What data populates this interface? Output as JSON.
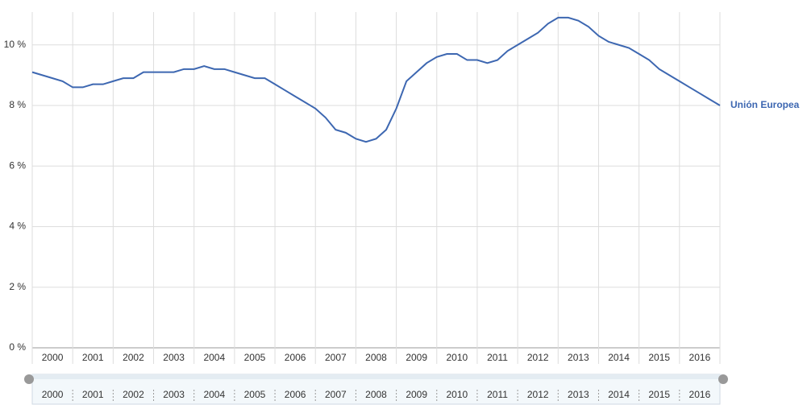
{
  "chart_data": {
    "type": "line",
    "x": [
      2000,
      2000.25,
      2000.5,
      2000.75,
      2001,
      2001.25,
      2001.5,
      2001.75,
      2002,
      2002.25,
      2002.5,
      2002.75,
      2003,
      2003.25,
      2003.5,
      2003.75,
      2004,
      2004.25,
      2004.5,
      2004.75,
      2005,
      2005.25,
      2005.5,
      2005.75,
      2006,
      2006.25,
      2006.5,
      2006.75,
      2007,
      2007.25,
      2007.5,
      2007.75,
      2008,
      2008.25,
      2008.5,
      2008.75,
      2009,
      2009.25,
      2009.5,
      2009.75,
      2010,
      2010.25,
      2010.5,
      2010.75,
      2011,
      2011.25,
      2011.5,
      2011.75,
      2012,
      2012.25,
      2012.5,
      2012.75,
      2013,
      2013.25,
      2013.5,
      2013.75,
      2014,
      2014.25,
      2014.5,
      2014.75,
      2015,
      2015.25,
      2015.5,
      2015.75,
      2016,
      2016.25,
      2016.5,
      2016.75,
      2017
    ],
    "series": [
      {
        "name": "Unión Europea",
        "color": "#3d67b1",
        "values": [
          9.1,
          9.0,
          8.9,
          8.8,
          8.6,
          8.6,
          8.7,
          8.7,
          8.8,
          8.9,
          8.9,
          9.1,
          9.1,
          9.1,
          9.1,
          9.2,
          9.2,
          9.3,
          9.2,
          9.2,
          9.1,
          9.0,
          8.9,
          8.9,
          8.7,
          8.5,
          8.3,
          8.1,
          7.9,
          7.6,
          7.2,
          7.1,
          6.9,
          6.8,
          6.9,
          7.2,
          7.9,
          8.8,
          9.1,
          9.4,
          9.6,
          9.7,
          9.7,
          9.5,
          9.5,
          9.4,
          9.5,
          9.8,
          10.0,
          10.2,
          10.4,
          10.7,
          10.9,
          10.9,
          10.8,
          10.6,
          10.3,
          10.1,
          10.0,
          9.9,
          9.7,
          9.5,
          9.2,
          9.0,
          8.8,
          8.6,
          8.4,
          8.2,
          8.0
        ]
      }
    ],
    "xlim": [
      2000,
      2017
    ],
    "xticks": [
      2000,
      2001,
      2002,
      2003,
      2004,
      2005,
      2006,
      2007,
      2008,
      2009,
      2010,
      2011,
      2012,
      2013,
      2014,
      2015,
      2016
    ],
    "ylim": [
      0,
      10.95
    ],
    "yticks": [
      {
        "value": 0,
        "label": "0 %"
      },
      {
        "value": 2,
        "label": "2 %"
      },
      {
        "value": 4,
        "label": "4 %"
      },
      {
        "value": 6,
        "label": "6 %"
      },
      {
        "value": 8,
        "label": "8 %"
      },
      {
        "value": 10,
        "label": "10 %"
      }
    ],
    "grid": true
  }
}
